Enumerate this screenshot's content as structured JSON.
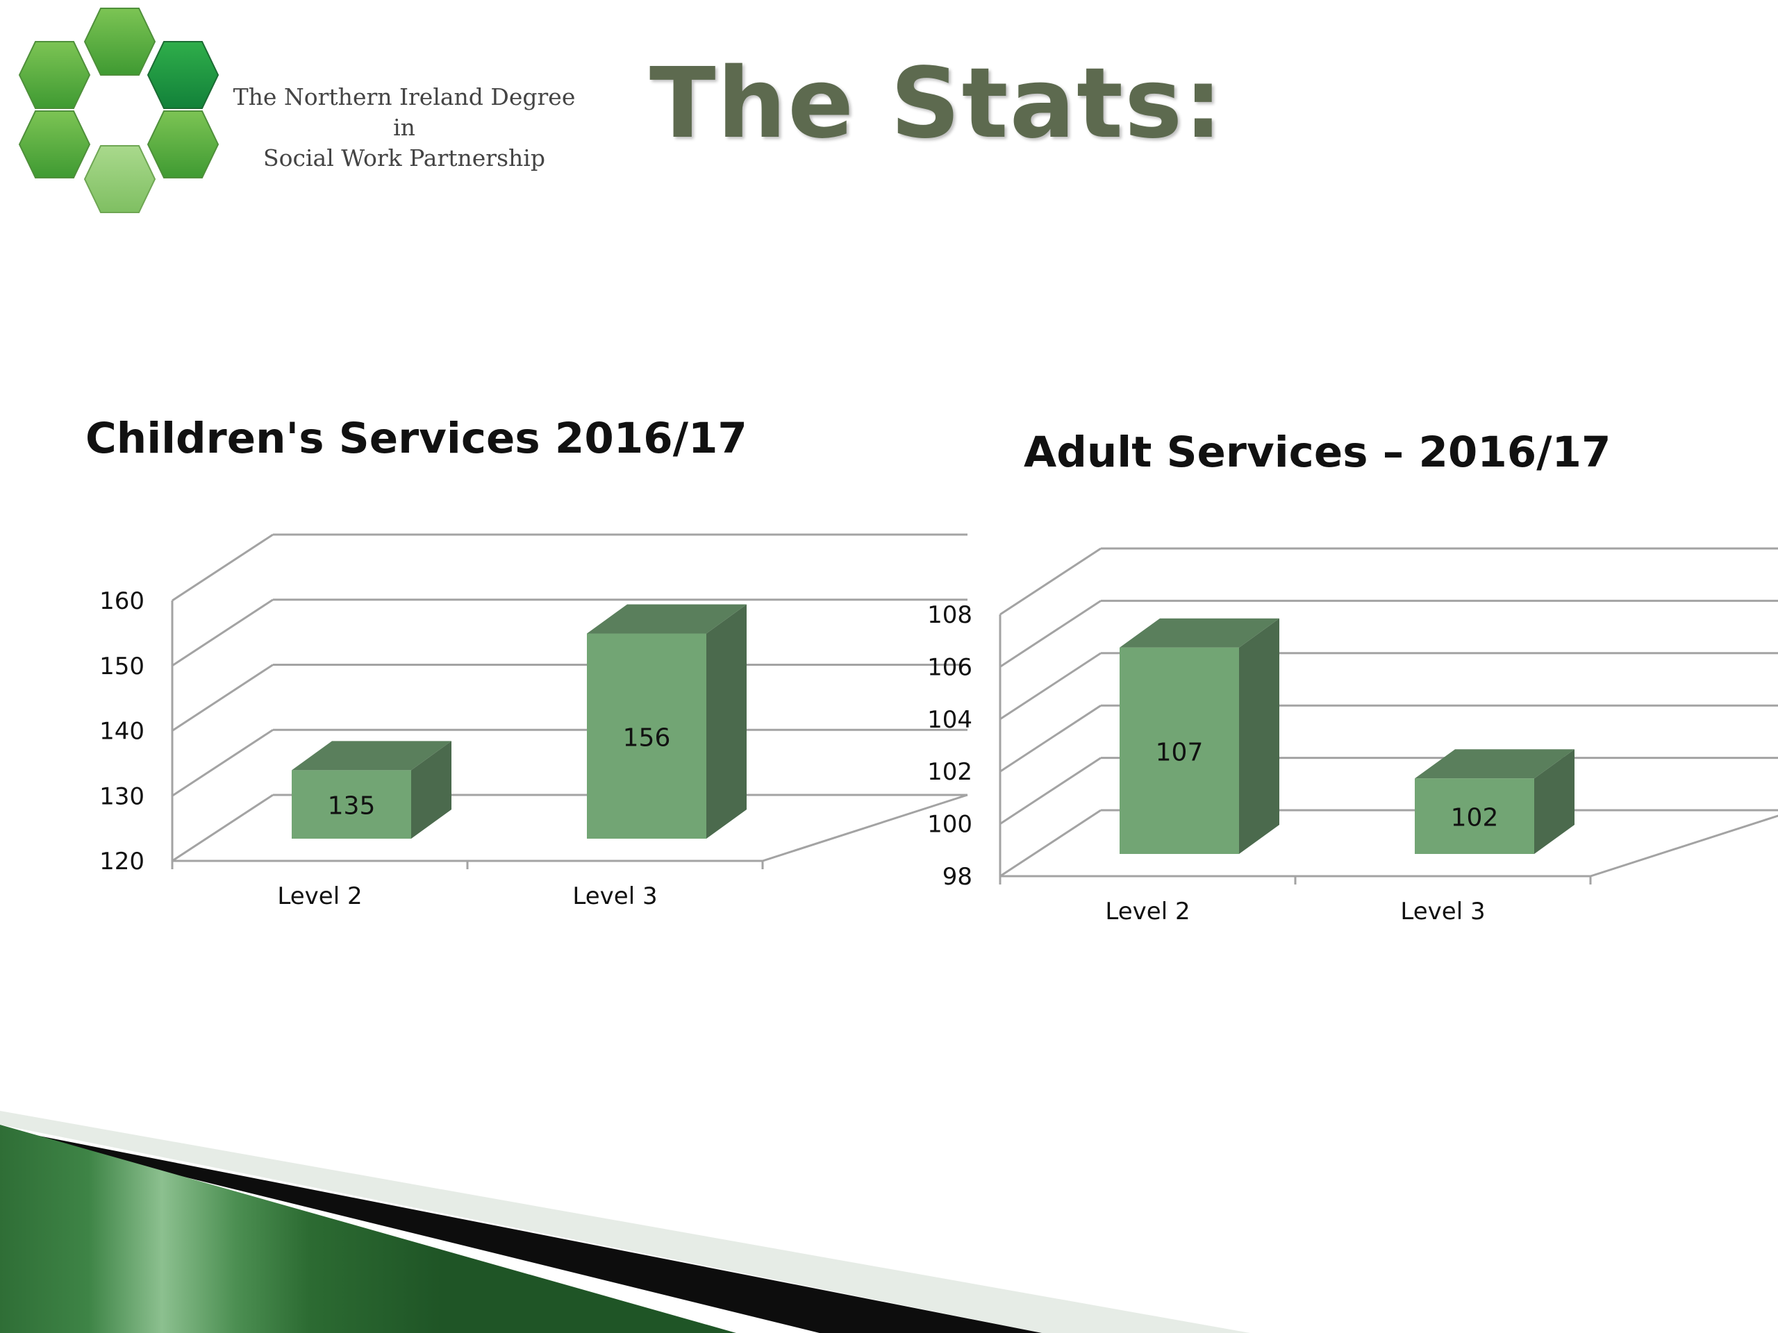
{
  "logo": {
    "icon": "hexagon-ring-logo",
    "line1": "The Northern Ireland Degree in",
    "line2": "Social Work Partnership"
  },
  "slide": {
    "title": "The Stats:"
  },
  "colors": {
    "bar_front": "#72a574",
    "bar_side": "#4b6a4d",
    "bar_top": "#5a7f5c",
    "grid": "#a3a3a3",
    "title": "#5d6a4f"
  },
  "chart_data": [
    {
      "type": "bar",
      "title": "Children's Services 2016/17",
      "categories": [
        "Level 2",
        "Level 3"
      ],
      "values": [
        135,
        156
      ],
      "ylim": [
        120,
        160
      ],
      "yticks": [
        "120",
        "130",
        "140",
        "150",
        "160"
      ],
      "data_labels": [
        "135",
        "156"
      ],
      "grid": true,
      "style": "3d"
    },
    {
      "type": "bar",
      "title": "Adult Services – 2016/17",
      "categories": [
        "Level 2",
        "Level 3"
      ],
      "values": [
        107,
        102
      ],
      "ylim": [
        98,
        108
      ],
      "yticks": [
        "98",
        "100",
        "102",
        "104",
        "106",
        "108"
      ],
      "data_labels": [
        "107",
        "102"
      ],
      "grid": true,
      "style": "3d"
    }
  ]
}
